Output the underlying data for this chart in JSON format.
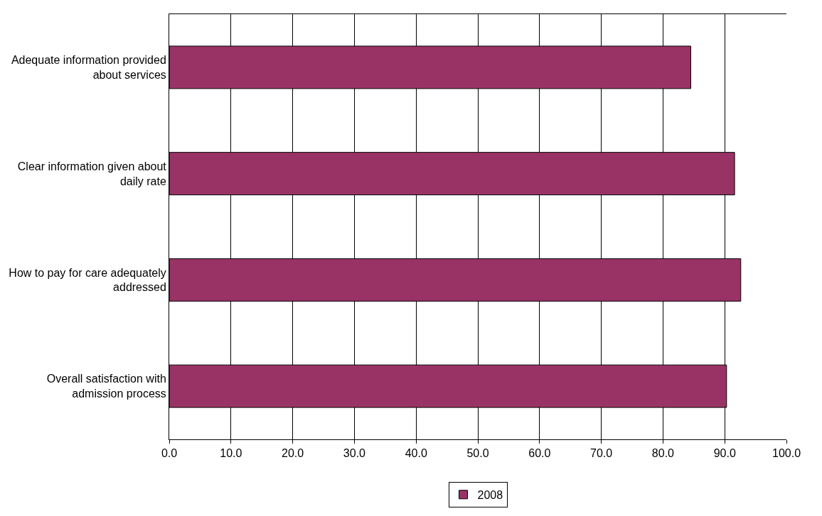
{
  "chart_data": {
    "type": "bar",
    "orientation": "horizontal",
    "categories": [
      "Adequate information provided about services",
      "Clear information given about daily rate",
      "How to pay for care adequately addressed",
      "Overall satisfaction with admission process"
    ],
    "series": [
      {
        "name": "2008",
        "color": "#993366",
        "values": [
          84.5,
          91.6,
          92.6,
          90.3
        ]
      }
    ],
    "xlim": [
      0,
      100
    ],
    "xticks": [
      {
        "value": 0,
        "label": "0.0"
      },
      {
        "value": 10,
        "label": "10.0"
      },
      {
        "value": 20,
        "label": "20.0"
      },
      {
        "value": 30,
        "label": "30.0"
      },
      {
        "value": 40,
        "label": "40.0"
      },
      {
        "value": 50,
        "label": "50.0"
      },
      {
        "value": 60,
        "label": "60.0"
      },
      {
        "value": 70,
        "label": "70.0"
      },
      {
        "value": 80,
        "label": "80.0"
      },
      {
        "value": 90,
        "label": "90.0"
      },
      {
        "value": 100,
        "label": "100.0"
      }
    ],
    "grid": "x",
    "legend": "bottom"
  }
}
